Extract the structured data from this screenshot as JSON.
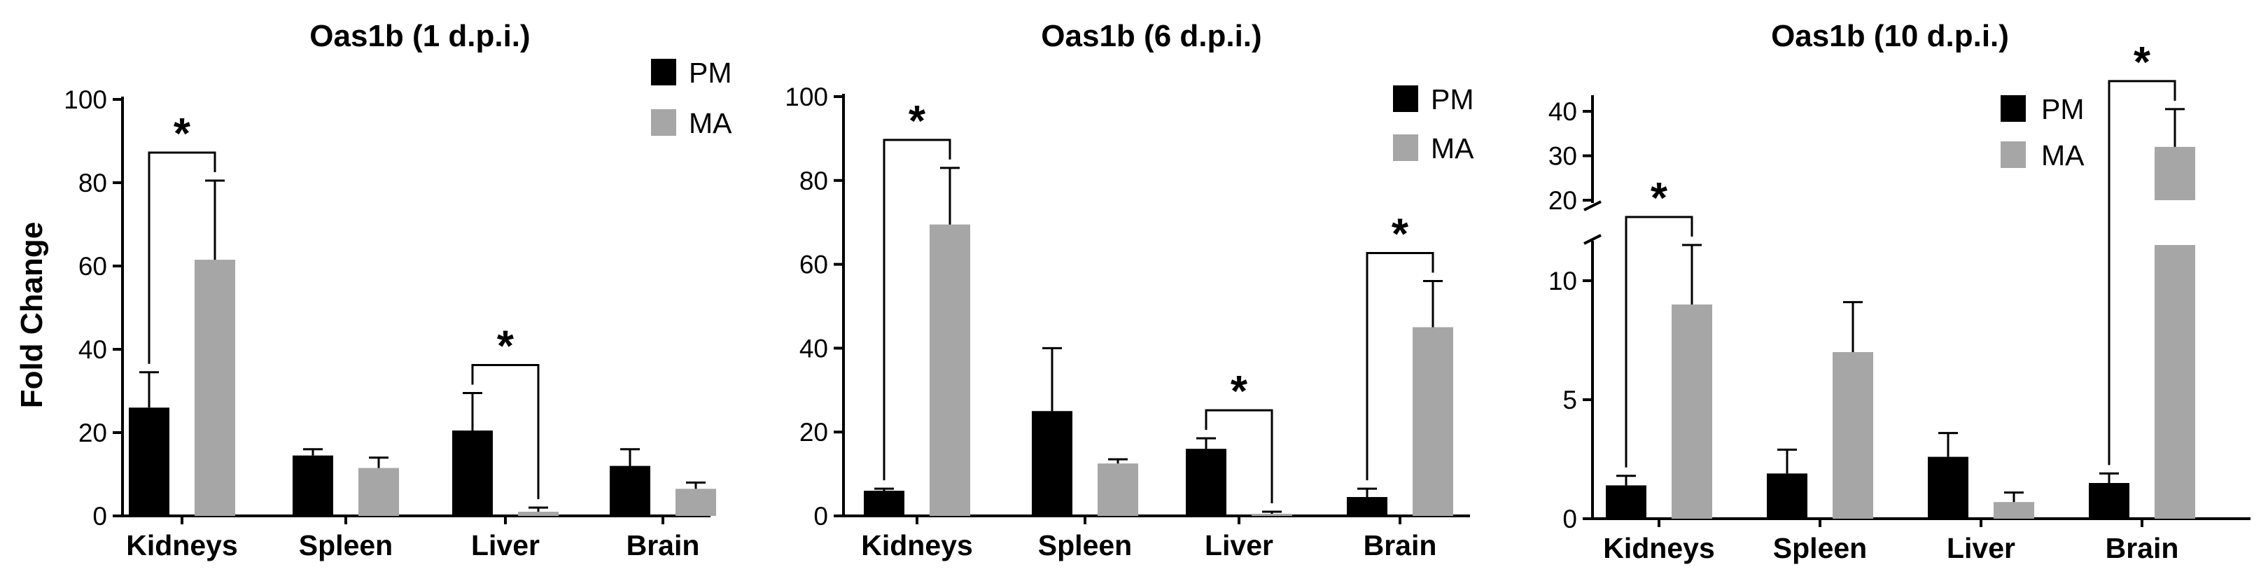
{
  "chart_data": [
    {
      "type": "bar",
      "title": "Oas1b (1 d.p.i.)",
      "ylabel": "Fold Change",
      "categories": [
        "Kidneys",
        "Spleen",
        "Liver",
        "Brain"
      ],
      "ylim": [
        0,
        100
      ],
      "yticks": [
        0,
        20,
        40,
        60,
        80,
        100
      ],
      "series": [
        {
          "name": "PM",
          "color": "#000000",
          "values": [
            26,
            14.5,
            20.5,
            12
          ],
          "errors": [
            8.5,
            1.5,
            9,
            4
          ]
        },
        {
          "name": "MA",
          "color": "#a6a6a6",
          "values": [
            61.5,
            11.5,
            1,
            6.5
          ],
          "errors": [
            19,
            2.5,
            1,
            1.5
          ]
        }
      ],
      "significance": [
        {
          "category": "Kidneys",
          "label": "*"
        },
        {
          "category": "Liver",
          "label": "*"
        }
      ],
      "legend": "top-right"
    },
    {
      "type": "bar",
      "title": "Oas1b (6 d.p.i.)",
      "ylabel": "",
      "categories": [
        "Kidneys",
        "Spleen",
        "Liver",
        "Brain"
      ],
      "ylim": [
        0,
        100
      ],
      "yticks": [
        0,
        20,
        40,
        60,
        80,
        100
      ],
      "series": [
        {
          "name": "PM",
          "color": "#000000",
          "values": [
            6,
            25,
            16,
            4.5
          ],
          "errors": [
            0.5,
            15,
            2.5,
            2
          ]
        },
        {
          "name": "MA",
          "color": "#a6a6a6",
          "values": [
            69.5,
            12.5,
            0.5,
            45
          ],
          "errors": [
            13.5,
            1,
            0.5,
            11
          ]
        }
      ],
      "significance": [
        {
          "category": "Kidneys",
          "label": "*"
        },
        {
          "category": "Liver",
          "label": "*"
        },
        {
          "category": "Brain",
          "label": "*"
        }
      ],
      "legend": "top-right"
    },
    {
      "type": "bar",
      "title": "Oas1b (10 d.p.i.)",
      "ylabel": "",
      "categories": [
        "Kidneys",
        "Spleen",
        "Liver",
        "Brain"
      ],
      "ylim": [
        0,
        43
      ],
      "axis_break": [
        11.5,
        20
      ],
      "yticks": [
        0,
        5,
        10,
        20,
        30,
        40
      ],
      "series": [
        {
          "name": "PM",
          "color": "#000000",
          "values": [
            1.4,
            1.9,
            2.6,
            1.5
          ],
          "errors": [
            0.4,
            1,
            1,
            0.4
          ]
        },
        {
          "name": "MA",
          "color": "#a6a6a6",
          "values": [
            9,
            7,
            0.7,
            32
          ],
          "errors": [
            2.5,
            2.1,
            0.4,
            8.5
          ]
        }
      ],
      "significance": [
        {
          "category": "Kidneys",
          "label": "*"
        },
        {
          "category": "Brain",
          "label": "*"
        }
      ],
      "legend": "top-right"
    }
  ]
}
